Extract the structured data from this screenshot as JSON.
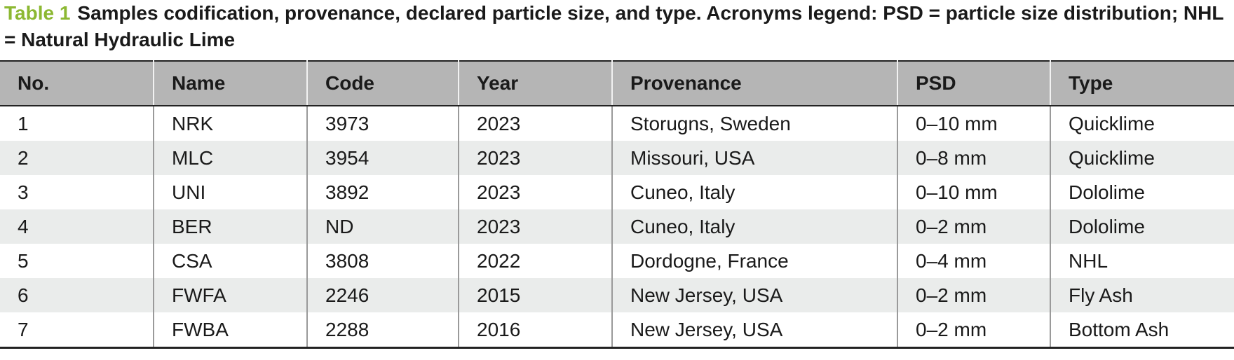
{
  "caption": {
    "label": "Table 1",
    "text": "Samples codification, provenance, declared particle size, and type. Acronyms legend: PSD = particle size distribution; NHL = Natural Hydraulic Lime"
  },
  "table": {
    "columns": [
      "No.",
      "Name",
      "Code",
      "Year",
      "Provenance",
      "PSD",
      "Type"
    ],
    "rows": [
      [
        "1",
        "NRK",
        "3973",
        "2023",
        "Storugns, Sweden",
        "0–10 mm",
        "Quicklime"
      ],
      [
        "2",
        "MLC",
        "3954",
        "2023",
        "Missouri, USA",
        "0–8 mm",
        "Quicklime"
      ],
      [
        "3",
        "UNI",
        "3892",
        "2023",
        "Cuneo, Italy",
        "0–10 mm",
        "Dololime"
      ],
      [
        "4",
        "BER",
        "ND",
        "2023",
        "Cuneo, Italy",
        "0–2 mm",
        "Dololime"
      ],
      [
        "5",
        "CSA",
        "3808",
        "2022",
        "Dordogne, France",
        "0–4 mm",
        "NHL"
      ],
      [
        "6",
        "FWFA",
        "2246",
        "2015",
        "New Jersey, USA",
        "0–2 mm",
        "Fly Ash"
      ],
      [
        "7",
        "FWBA",
        "2288",
        "2016",
        "New Jersey, USA",
        "0–2 mm",
        "Bottom Ash"
      ]
    ]
  }
}
